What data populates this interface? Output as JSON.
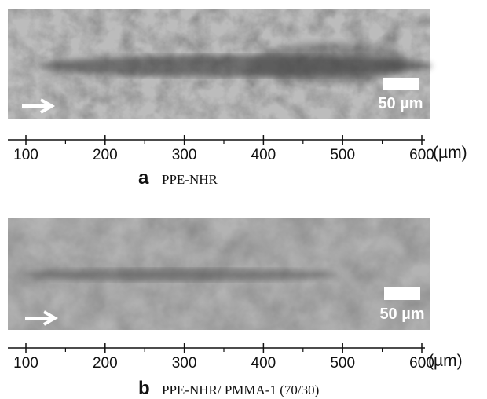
{
  "panels": [
    {
      "scale_bar_label": "50 µm",
      "axis": {
        "lim": [
          100,
          600
        ],
        "ticks": [
          100,
          200,
          300,
          400,
          500,
          600
        ],
        "minor_ticks": [
          150,
          250,
          350,
          450,
          550
        ],
        "unit": "(µm)"
      },
      "letter": "a",
      "caption": "PPE-NHR"
    },
    {
      "scale_bar_label": "50 µm",
      "axis": {
        "lim": [
          100,
          600
        ],
        "ticks": [
          100,
          200,
          300,
          400,
          500,
          600
        ],
        "minor_ticks": [
          150,
          250,
          350,
          450,
          550
        ],
        "unit": "(µm)"
      },
      "letter": "b",
      "caption": "PPE-NHR/ PMMA-1 (70/30)"
    }
  ]
}
